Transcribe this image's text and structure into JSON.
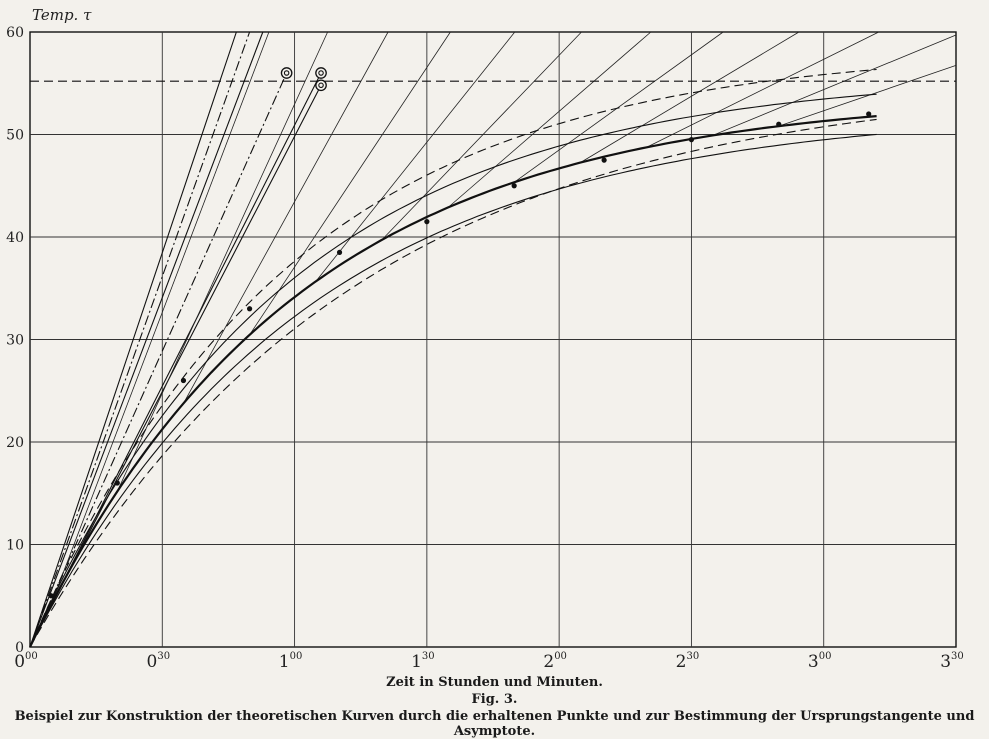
{
  "figure": {
    "xlabel": "Zeit in Stunden und Minuten.",
    "fig_label": "Fig. 3.",
    "caption": "Beispiel zur Konstruktion der theoretischen Kurven durch die erhaltenen Punkte und zur Bestimmung der Ursprungstangente und Asymptote."
  },
  "chart_data": {
    "type": "line",
    "ylabel": "Temp. τ",
    "xlabel": "Zeit in Stunden und Minuten.",
    "x_unit": "hours",
    "xlim": [
      0,
      3.5
    ],
    "ylim": [
      0,
      60
    ],
    "grid": true,
    "y_ticks": [
      0,
      10,
      20,
      30,
      40,
      50,
      60
    ],
    "x_ticks": [
      {
        "value": 0,
        "hours": "0",
        "minutes": "00"
      },
      {
        "value": 0.5,
        "hours": "0",
        "minutes": "30"
      },
      {
        "value": 1.0,
        "hours": "1",
        "minutes": "00"
      },
      {
        "value": 1.5,
        "hours": "1",
        "minutes": "30"
      },
      {
        "value": 2.0,
        "hours": "2",
        "minutes": "00"
      },
      {
        "value": 2.5,
        "hours": "2",
        "minutes": "30"
      },
      {
        "value": 3.0,
        "hours": "3",
        "minutes": "00"
      },
      {
        "value": 3.5,
        "hours": "3",
        "minutes": "30"
      }
    ],
    "asymptote_y": 55.2,
    "circle_markers": [
      {
        "x": 0.97,
        "y": 56.0
      },
      {
        "x": 1.1,
        "y": 56.0
      },
      {
        "x": 1.1,
        "y": 54.8
      }
    ],
    "measured_points": [
      {
        "x": 0.08,
        "y": 5
      },
      {
        "x": 0.33,
        "y": 16
      },
      {
        "x": 0.58,
        "y": 26
      },
      {
        "x": 0.83,
        "y": 33
      },
      {
        "x": 1.17,
        "y": 38.5
      },
      {
        "x": 1.5,
        "y": 41.5
      },
      {
        "x": 1.83,
        "y": 45
      },
      {
        "x": 2.17,
        "y": 47.5
      },
      {
        "x": 2.5,
        "y": 49.5
      },
      {
        "x": 2.83,
        "y": 51
      },
      {
        "x": 3.17,
        "y": 52
      }
    ],
    "origin_tangents": [
      {
        "end_x": 0.78,
        "end_y": 60,
        "style": "solid"
      },
      {
        "end_x": 0.83,
        "end_y": 60,
        "style": "dashdot"
      },
      {
        "end_x": 0.88,
        "end_y": 60,
        "style": "solid"
      },
      {
        "end_x": 0.97,
        "end_y": 56.0,
        "style": "dashdot"
      },
      {
        "end_x": 1.1,
        "end_y": 56.0,
        "style": "solid"
      },
      {
        "end_x": 1.1,
        "end_y": 54.8,
        "style": "solid"
      }
    ],
    "series": [
      {
        "style": "solid",
        "tau_inf": 54.0,
        "T": 1.0,
        "weight": "bold"
      },
      {
        "style": "solid",
        "tau_inf": 56.0,
        "T": 0.97,
        "weight": "normal"
      },
      {
        "style": "solid",
        "tau_inf": 52.5,
        "T": 1.05,
        "weight": "normal"
      },
      {
        "style": "dashed",
        "tau_inf": 58.5,
        "T": 0.97,
        "weight": "normal"
      },
      {
        "style": "dashed",
        "tau_inf": 55.5,
        "T": 1.22,
        "weight": "normal"
      }
    ]
  }
}
